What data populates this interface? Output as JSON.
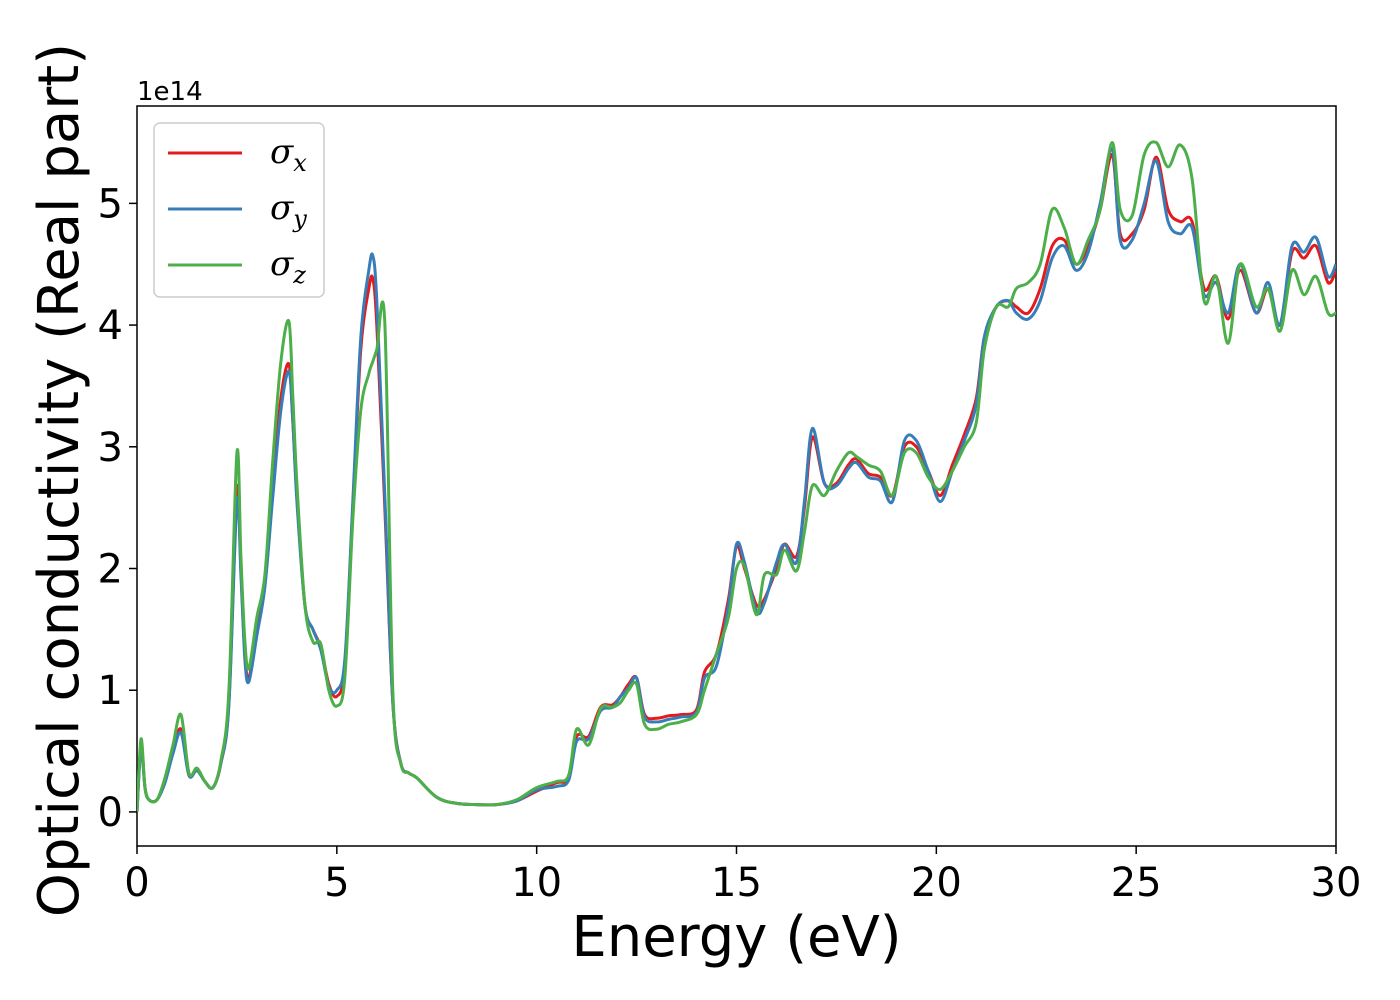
{
  "chart_data": {
    "type": "line",
    "xlabel": "Energy (eV)",
    "ylabel": "Optical conductivity (Real part)",
    "y_offset_label": "1e14",
    "xlim": [
      0,
      30
    ],
    "ylim": [
      -0.28,
      5.8
    ],
    "x_ticks": [
      0,
      5,
      10,
      15,
      20,
      25,
      30
    ],
    "y_ticks": [
      0,
      1,
      2,
      3,
      4,
      5
    ],
    "grid": false,
    "legend_position": "top-left",
    "series": [
      {
        "name": "σ",
        "subscript": "x",
        "color": "#e41a1c",
        "x": [
          0,
          0.1,
          0.2,
          0.3,
          0.5,
          0.7,
          0.9,
          1.1,
          1.3,
          1.5,
          1.7,
          1.9,
          2.1,
          2.3,
          2.5,
          2.6,
          2.7,
          2.8,
          3.0,
          3.2,
          3.4,
          3.6,
          3.8,
          3.9,
          4.0,
          4.2,
          4.4,
          4.6,
          4.8,
          5.0,
          5.2,
          5.4,
          5.6,
          5.8,
          5.9,
          6.0,
          6.2,
          6.4,
          6.6,
          6.8,
          7.0,
          7.5,
          8.0,
          8.5,
          9.0,
          9.5,
          10.0,
          10.5,
          10.8,
          11.0,
          11.3,
          11.6,
          11.9,
          12.1,
          12.3,
          12.5,
          12.7,
          13.0,
          13.3,
          13.6,
          14.0,
          14.2,
          14.5,
          14.8,
          15.0,
          15.2,
          15.5,
          15.7,
          16.0,
          16.2,
          16.5,
          16.7,
          16.9,
          17.2,
          17.5,
          17.8,
          18.0,
          18.3,
          18.6,
          18.9,
          19.2,
          19.5,
          19.8,
          20.1,
          20.4,
          20.7,
          21.0,
          21.2,
          21.5,
          21.8,
          22.0,
          22.3,
          22.6,
          22.9,
          23.2,
          23.5,
          23.8,
          24.1,
          24.4,
          24.6,
          24.9,
          25.2,
          25.5,
          25.8,
          26.1,
          26.4,
          26.7,
          27.0,
          27.3,
          27.6,
          28.0,
          28.3,
          28.6,
          28.9,
          29.2,
          29.5,
          29.8,
          30.0
        ],
        "y": [
          0.0,
          0.55,
          0.2,
          0.1,
          0.1,
          0.25,
          0.5,
          0.68,
          0.3,
          0.35,
          0.25,
          0.2,
          0.4,
          0.9,
          2.65,
          2.0,
          1.3,
          1.1,
          1.5,
          1.9,
          2.7,
          3.4,
          3.68,
          3.2,
          2.6,
          1.7,
          1.5,
          1.35,
          1.05,
          0.95,
          1.2,
          2.5,
          3.8,
          4.3,
          4.38,
          4.0,
          2.5,
          0.9,
          0.4,
          0.32,
          0.28,
          0.12,
          0.07,
          0.06,
          0.06,
          0.09,
          0.17,
          0.24,
          0.28,
          0.62,
          0.62,
          0.86,
          0.88,
          0.95,
          1.05,
          1.1,
          0.8,
          0.77,
          0.79,
          0.8,
          0.84,
          1.15,
          1.3,
          1.75,
          2.18,
          2.0,
          1.7,
          1.75,
          2.0,
          2.2,
          2.1,
          2.5,
          3.08,
          2.7,
          2.7,
          2.85,
          2.9,
          2.78,
          2.75,
          2.6,
          3.0,
          3.0,
          2.8,
          2.6,
          2.85,
          3.1,
          3.4,
          3.9,
          4.15,
          4.2,
          4.15,
          4.1,
          4.3,
          4.65,
          4.7,
          4.5,
          4.65,
          4.95,
          5.4,
          4.75,
          4.75,
          4.95,
          5.38,
          4.95,
          4.85,
          4.85,
          4.3,
          4.4,
          4.05,
          4.45,
          4.1,
          4.3,
          4.0,
          4.6,
          4.55,
          4.65,
          4.35,
          4.45
        ]
      },
      {
        "name": "σ",
        "subscript": "y",
        "color": "#377eb8",
        "x": [
          0,
          0.1,
          0.2,
          0.3,
          0.5,
          0.7,
          0.9,
          1.1,
          1.3,
          1.5,
          1.7,
          1.9,
          2.1,
          2.3,
          2.5,
          2.6,
          2.7,
          2.8,
          3.0,
          3.2,
          3.4,
          3.6,
          3.8,
          3.9,
          4.0,
          4.2,
          4.4,
          4.6,
          4.8,
          5.0,
          5.2,
          5.4,
          5.6,
          5.8,
          5.9,
          6.0,
          6.2,
          6.4,
          6.6,
          6.8,
          7.0,
          7.5,
          8.0,
          8.5,
          9.0,
          9.5,
          10.0,
          10.5,
          10.8,
          11.0,
          11.3,
          11.6,
          11.9,
          12.1,
          12.3,
          12.5,
          12.7,
          13.0,
          13.3,
          13.6,
          14.0,
          14.2,
          14.5,
          14.8,
          15.0,
          15.2,
          15.5,
          15.7,
          16.0,
          16.2,
          16.5,
          16.7,
          16.9,
          17.2,
          17.5,
          17.8,
          18.0,
          18.3,
          18.6,
          18.9,
          19.2,
          19.5,
          19.8,
          20.1,
          20.4,
          20.7,
          21.0,
          21.2,
          21.5,
          21.8,
          22.0,
          22.3,
          22.6,
          22.9,
          23.2,
          23.5,
          23.8,
          24.1,
          24.4,
          24.6,
          24.9,
          25.2,
          25.5,
          25.8,
          26.1,
          26.4,
          26.7,
          27.0,
          27.3,
          27.6,
          28.0,
          28.3,
          28.6,
          28.9,
          29.2,
          29.5,
          29.8,
          30.0
        ],
        "y": [
          0.0,
          0.52,
          0.2,
          0.1,
          0.1,
          0.24,
          0.48,
          0.65,
          0.3,
          0.34,
          0.25,
          0.2,
          0.4,
          0.88,
          2.55,
          1.95,
          1.25,
          1.07,
          1.45,
          1.85,
          2.6,
          3.3,
          3.62,
          3.2,
          2.55,
          1.7,
          1.5,
          1.33,
          1.03,
          1.0,
          1.25,
          2.55,
          3.9,
          4.45,
          4.57,
          4.2,
          2.6,
          0.9,
          0.4,
          0.32,
          0.28,
          0.12,
          0.07,
          0.06,
          0.06,
          0.09,
          0.18,
          0.21,
          0.26,
          0.58,
          0.6,
          0.83,
          0.86,
          0.95,
          1.02,
          1.1,
          0.78,
          0.74,
          0.76,
          0.78,
          0.82,
          1.1,
          1.2,
          1.7,
          2.2,
          2.05,
          1.65,
          1.72,
          2.05,
          2.2,
          2.05,
          2.55,
          3.15,
          2.7,
          2.68,
          2.82,
          2.87,
          2.75,
          2.72,
          2.55,
          3.05,
          3.05,
          2.8,
          2.55,
          2.8,
          3.05,
          3.35,
          3.9,
          4.15,
          4.2,
          4.1,
          4.05,
          4.2,
          4.55,
          4.65,
          4.45,
          4.6,
          5.0,
          5.45,
          4.7,
          4.7,
          5.0,
          5.35,
          4.85,
          4.75,
          4.8,
          4.25,
          4.35,
          4.1,
          4.5,
          4.1,
          4.35,
          4.0,
          4.65,
          4.6,
          4.72,
          4.4,
          4.5
        ]
      },
      {
        "name": "σ",
        "subscript": "z",
        "color": "#4daf4a",
        "x": [
          0,
          0.1,
          0.2,
          0.3,
          0.5,
          0.7,
          0.9,
          1.1,
          1.3,
          1.5,
          1.7,
          1.9,
          2.1,
          2.3,
          2.5,
          2.6,
          2.7,
          2.8,
          3.0,
          3.2,
          3.4,
          3.6,
          3.8,
          3.9,
          4.0,
          4.2,
          4.4,
          4.6,
          4.8,
          5.0,
          5.2,
          5.4,
          5.6,
          5.8,
          5.9,
          6.0,
          6.2,
          6.4,
          6.6,
          6.8,
          7.0,
          7.5,
          8.0,
          8.5,
          9.0,
          9.5,
          10.0,
          10.5,
          10.8,
          11.0,
          11.3,
          11.6,
          11.9,
          12.1,
          12.3,
          12.5,
          12.7,
          13.0,
          13.3,
          13.6,
          14.0,
          14.2,
          14.5,
          14.8,
          15.0,
          15.2,
          15.5,
          15.7,
          16.0,
          16.2,
          16.5,
          16.7,
          16.9,
          17.2,
          17.5,
          17.8,
          18.0,
          18.3,
          18.6,
          18.9,
          19.2,
          19.5,
          19.8,
          20.1,
          20.4,
          20.7,
          21.0,
          21.2,
          21.5,
          21.8,
          22.0,
          22.3,
          22.6,
          22.9,
          23.2,
          23.5,
          23.8,
          24.1,
          24.4,
          24.6,
          24.9,
          25.2,
          25.5,
          25.8,
          26.1,
          26.4,
          26.7,
          27.0,
          27.3,
          27.6,
          28.0,
          28.3,
          28.6,
          28.9,
          29.2,
          29.5,
          29.8,
          30.0
        ],
        "y": [
          0.0,
          0.6,
          0.2,
          0.1,
          0.1,
          0.28,
          0.55,
          0.8,
          0.32,
          0.36,
          0.25,
          0.2,
          0.42,
          1.0,
          2.95,
          2.1,
          1.4,
          1.18,
          1.6,
          1.95,
          2.9,
          3.7,
          4.03,
          3.4,
          2.7,
          1.7,
          1.4,
          1.38,
          1.0,
          0.87,
          1.1,
          2.4,
          3.3,
          3.6,
          3.7,
          3.8,
          4.02,
          1.0,
          0.4,
          0.32,
          0.28,
          0.12,
          0.07,
          0.06,
          0.06,
          0.1,
          0.2,
          0.25,
          0.3,
          0.68,
          0.55,
          0.85,
          0.86,
          0.9,
          1.0,
          1.05,
          0.72,
          0.68,
          0.72,
          0.74,
          0.8,
          1.0,
          1.3,
          1.6,
          2.0,
          2.02,
          1.62,
          1.95,
          1.95,
          2.15,
          1.98,
          2.3,
          2.68,
          2.6,
          2.8,
          2.95,
          2.92,
          2.85,
          2.8,
          2.6,
          2.95,
          2.95,
          2.75,
          2.65,
          2.8,
          3.0,
          3.2,
          3.8,
          4.15,
          4.15,
          4.3,
          4.35,
          4.5,
          4.95,
          4.8,
          4.5,
          4.7,
          4.95,
          5.5,
          4.95,
          4.9,
          5.4,
          5.5,
          5.3,
          5.48,
          5.2,
          4.2,
          4.4,
          3.85,
          4.5,
          4.15,
          4.3,
          3.95,
          4.45,
          4.25,
          4.4,
          4.1,
          4.1
        ]
      }
    ]
  }
}
